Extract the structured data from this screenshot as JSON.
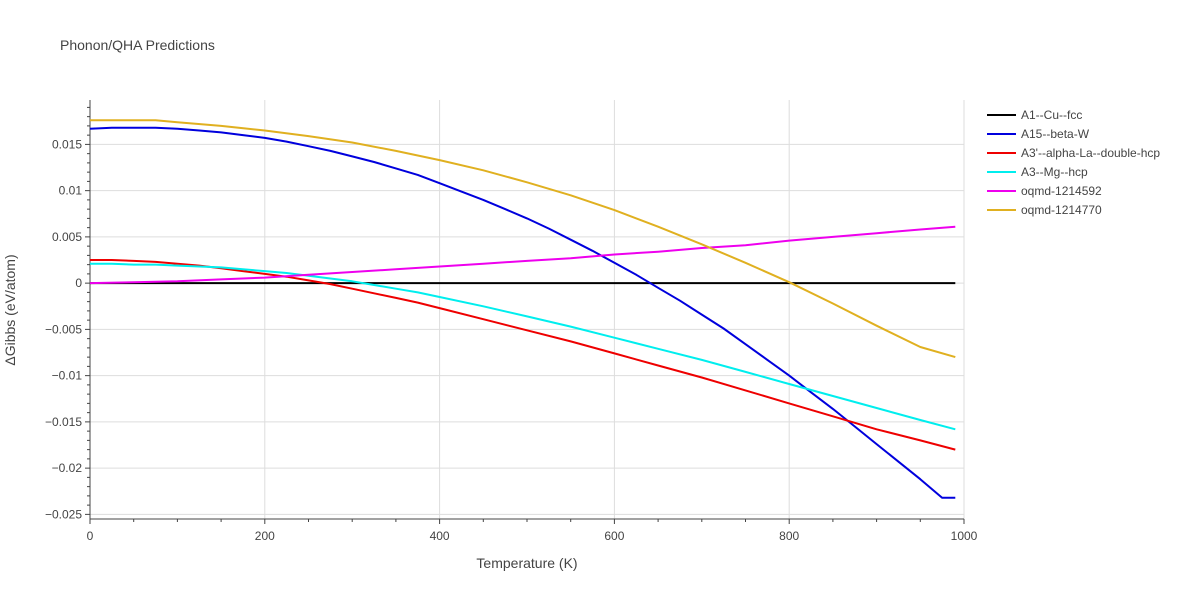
{
  "chart_data": {
    "type": "line",
    "title": "Phonon/QHA Predictions",
    "xlabel": "Temperature (K)",
    "ylabel": "ΔGibbs (eV/atom)",
    "xlim": [
      0,
      1000
    ],
    "ylim": [
      -0.0255,
      0.0198
    ],
    "xticks": [
      0,
      200,
      400,
      600,
      800,
      1000
    ],
    "xtick_labels": [
      "0",
      "200",
      "400",
      "600",
      "800",
      "1000"
    ],
    "yticks": [
      0.015,
      0.01,
      0.005,
      0,
      -0.005,
      -0.01,
      -0.015,
      -0.02,
      -0.025
    ],
    "ytick_labels": [
      "0.015",
      "0.01",
      "0.005",
      "0",
      "−0.005",
      "−0.01",
      "−0.015",
      "−0.02",
      "−0.025"
    ],
    "grid": true,
    "legend_position": "top-right",
    "series": [
      {
        "name": "A1--Cu--fcc",
        "color": "#000000",
        "x": [
          0,
          100,
          200,
          300,
          400,
          500,
          600,
          700,
          800,
          990
        ],
        "y": [
          0,
          0,
          0,
          0,
          0,
          0,
          0,
          0,
          0,
          0
        ]
      },
      {
        "name": "A15--beta-W",
        "color": "#0000dd",
        "x": [
          0,
          25,
          50,
          75,
          100,
          125,
          150,
          175,
          200,
          225,
          250,
          275,
          300,
          325,
          350,
          375,
          400,
          425,
          450,
          475,
          500,
          525,
          550,
          575,
          600,
          625,
          650,
          675,
          700,
          725,
          750,
          775,
          800,
          825,
          850,
          875,
          900,
          925,
          950,
          975,
          990
        ],
        "y": [
          0.0167,
          0.0168,
          0.0168,
          0.0168,
          0.0167,
          0.0165,
          0.0163,
          0.016,
          0.0157,
          0.0153,
          0.0148,
          0.0143,
          0.0137,
          0.0131,
          0.0124,
          0.0117,
          0.0108,
          0.0099,
          0.009,
          0.008,
          0.007,
          0.0059,
          0.0047,
          0.0035,
          0.0022,
          0.0009,
          -0.0005,
          -0.0019,
          -0.0034,
          -0.0049,
          -0.0066,
          -0.0083,
          -0.01,
          -0.0118,
          -0.0136,
          -0.0155,
          -0.0174,
          -0.0193,
          -0.0212,
          -0.0232,
          -0.0232
        ]
      },
      {
        "name": "A3'--alpha-La--double-hcp",
        "color": "#ee0000",
        "x": [
          0,
          25,
          50,
          75,
          100,
          125,
          150,
          175,
          200,
          225,
          250,
          275,
          300,
          325,
          350,
          375,
          400,
          450,
          500,
          550,
          600,
          650,
          700,
          750,
          800,
          850,
          900,
          950,
          990
        ],
        "y": [
          0.0025,
          0.0025,
          0.0024,
          0.0023,
          0.0021,
          0.0019,
          0.0016,
          0.0013,
          0.001,
          0.0007,
          0.0003,
          -0.0001,
          -0.0006,
          -0.0011,
          -0.0016,
          -0.0021,
          -0.0027,
          -0.0039,
          -0.0051,
          -0.0063,
          -0.0076,
          -0.0089,
          -0.0102,
          -0.0116,
          -0.013,
          -0.0144,
          -0.0158,
          -0.017,
          -0.018
        ]
      },
      {
        "name": "A3--Mg--hcp",
        "color": "#00eeee",
        "x": [
          0,
          25,
          50,
          75,
          100,
          125,
          150,
          175,
          200,
          225,
          250,
          275,
          300,
          325,
          350,
          375,
          400,
          450,
          500,
          550,
          600,
          650,
          700,
          750,
          800,
          850,
          900,
          950,
          990
        ],
        "y": [
          0.0021,
          0.0021,
          0.002,
          0.002,
          0.0019,
          0.0018,
          0.0017,
          0.0015,
          0.0013,
          0.0011,
          0.0008,
          0.0005,
          0.0002,
          -0.0002,
          -0.0006,
          -0.001,
          -0.0015,
          -0.0025,
          -0.0036,
          -0.0047,
          -0.0059,
          -0.0071,
          -0.0083,
          -0.0096,
          -0.0109,
          -0.0122,
          -0.0135,
          -0.0148,
          -0.0158
        ]
      },
      {
        "name": "oqmd-1214592",
        "color": "#ee00ee",
        "x": [
          0,
          50,
          100,
          150,
          200,
          250,
          300,
          350,
          400,
          450,
          500,
          550,
          600,
          650,
          700,
          750,
          800,
          850,
          900,
          950,
          990
        ],
        "y": [
          0,
          0.0001,
          0.0002,
          0.0004,
          0.0006,
          0.0009,
          0.0012,
          0.0015,
          0.0018,
          0.0021,
          0.0024,
          0.0027,
          0.0031,
          0.0034,
          0.0038,
          0.0041,
          0.0046,
          0.005,
          0.0054,
          0.0058,
          0.0061
        ]
      },
      {
        "name": "oqmd-1214770",
        "color": "#e0b020",
        "x": [
          0,
          25,
          50,
          75,
          100,
          150,
          200,
          250,
          300,
          350,
          400,
          450,
          500,
          550,
          600,
          650,
          700,
          750,
          800,
          850,
          900,
          950,
          990
        ],
        "y": [
          0.0176,
          0.0176,
          0.0176,
          0.0176,
          0.0174,
          0.017,
          0.0165,
          0.0159,
          0.0152,
          0.0143,
          0.0133,
          0.0122,
          0.0109,
          0.0095,
          0.0079,
          0.0061,
          0.0042,
          0.0022,
          0.0001,
          -0.0022,
          -0.0046,
          -0.0069,
          -0.008
        ]
      }
    ]
  }
}
